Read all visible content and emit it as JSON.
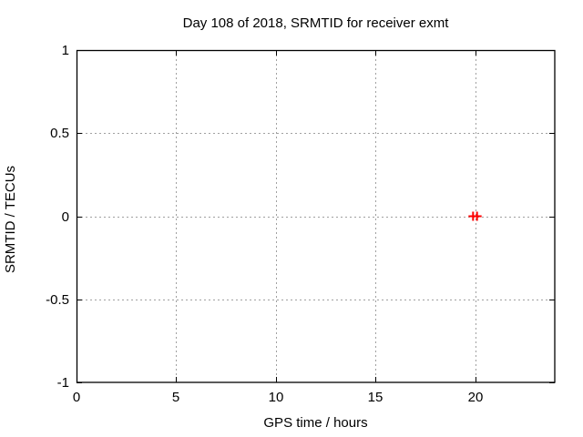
{
  "chart_data": {
    "type": "scatter",
    "title": "Day 108 of 2018, SRMTID for receiver exmt",
    "xlabel": "GPS time / hours",
    "ylabel": "SRMTID / TECUs",
    "xlim": [
      0,
      24
    ],
    "ylim": [
      -1,
      1
    ],
    "xticks": [
      0,
      5,
      10,
      15,
      20
    ],
    "yticks": [
      -1,
      -0.5,
      0,
      0.5,
      1
    ],
    "grid": true,
    "legend": "none",
    "grid_color": "#a0a0a0",
    "axis_color": "#000000",
    "background_color": "#ffffff",
    "series": [
      {
        "name": "SRMTID",
        "marker": "plus",
        "color": "#ff0000",
        "points": [
          {
            "x": 19.9,
            "y": 0.0
          },
          {
            "x": 20.1,
            "y": 0.0
          }
        ]
      }
    ]
  }
}
